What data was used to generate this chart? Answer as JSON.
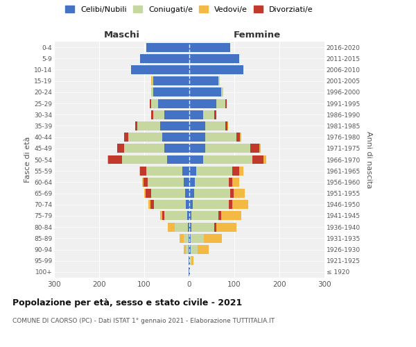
{
  "age_groups": [
    "100+",
    "95-99",
    "90-94",
    "85-89",
    "80-84",
    "75-79",
    "70-74",
    "65-69",
    "60-64",
    "55-59",
    "50-54",
    "45-49",
    "40-44",
    "35-39",
    "30-34",
    "25-29",
    "20-24",
    "15-19",
    "10-14",
    "5-9",
    "0-4"
  ],
  "birth_years": [
    "≤ 1920",
    "1921-1925",
    "1926-1930",
    "1931-1935",
    "1936-1940",
    "1941-1945",
    "1946-1950",
    "1951-1955",
    "1956-1960",
    "1961-1965",
    "1966-1970",
    "1971-1975",
    "1976-1980",
    "1981-1985",
    "1986-1990",
    "1991-1995",
    "1996-2000",
    "2001-2005",
    "2006-2010",
    "2011-2015",
    "2016-2020"
  ],
  "males_celibe": [
    1,
    1,
    2,
    2,
    3,
    5,
    8,
    10,
    12,
    15,
    50,
    55,
    60,
    65,
    55,
    70,
    80,
    80,
    130,
    110,
    95
  ],
  "males_coniugato": [
    0,
    1,
    5,
    10,
    30,
    50,
    70,
    75,
    80,
    80,
    100,
    90,
    75,
    50,
    25,
    15,
    5,
    2,
    0,
    0,
    0
  ],
  "males_vedovo": [
    0,
    0,
    5,
    10,
    15,
    5,
    5,
    3,
    2,
    1,
    1,
    0,
    0,
    0,
    0,
    0,
    0,
    2,
    0,
    0,
    0
  ],
  "males_divorziato": [
    0,
    0,
    0,
    0,
    0,
    5,
    8,
    12,
    10,
    15,
    30,
    15,
    10,
    5,
    5,
    2,
    0,
    0,
    0,
    0,
    0
  ],
  "females_nubile": [
    1,
    2,
    3,
    3,
    5,
    5,
    8,
    10,
    12,
    15,
    30,
    35,
    35,
    35,
    30,
    60,
    70,
    65,
    120,
    110,
    90
  ],
  "females_coniugata": [
    0,
    2,
    15,
    30,
    50,
    60,
    80,
    80,
    75,
    80,
    110,
    100,
    70,
    45,
    25,
    20,
    5,
    2,
    0,
    0,
    0
  ],
  "females_vedova": [
    0,
    5,
    25,
    40,
    45,
    45,
    35,
    25,
    15,
    10,
    5,
    3,
    2,
    1,
    0,
    0,
    0,
    0,
    0,
    0,
    0
  ],
  "females_divorziata": [
    0,
    0,
    0,
    0,
    5,
    5,
    8,
    8,
    8,
    15,
    25,
    20,
    8,
    5,
    5,
    3,
    0,
    0,
    0,
    0,
    0
  ],
  "color_celibe": "#4472c4",
  "color_coniugato": "#c6d8a0",
  "color_vedovo": "#f4b942",
  "color_divorziato": "#c0392b",
  "legend_labels": [
    "Celibi/Nubili",
    "Coniugati/e",
    "Vedovi/e",
    "Divorziati/e"
  ],
  "title": "Popolazione per età, sesso e stato civile - 2021",
  "subtitle": "COMUNE DI CAORSO (PC) - Dati ISTAT 1° gennaio 2021 - Elaborazione TUTTITALIA.IT",
  "label_maschi": "Maschi",
  "label_femmine": "Femmine",
  "ylabel_left": "Fasce di età",
  "ylabel_right": "Anni di nascita",
  "xlim": 300,
  "bg_color": "#f0f0f0"
}
